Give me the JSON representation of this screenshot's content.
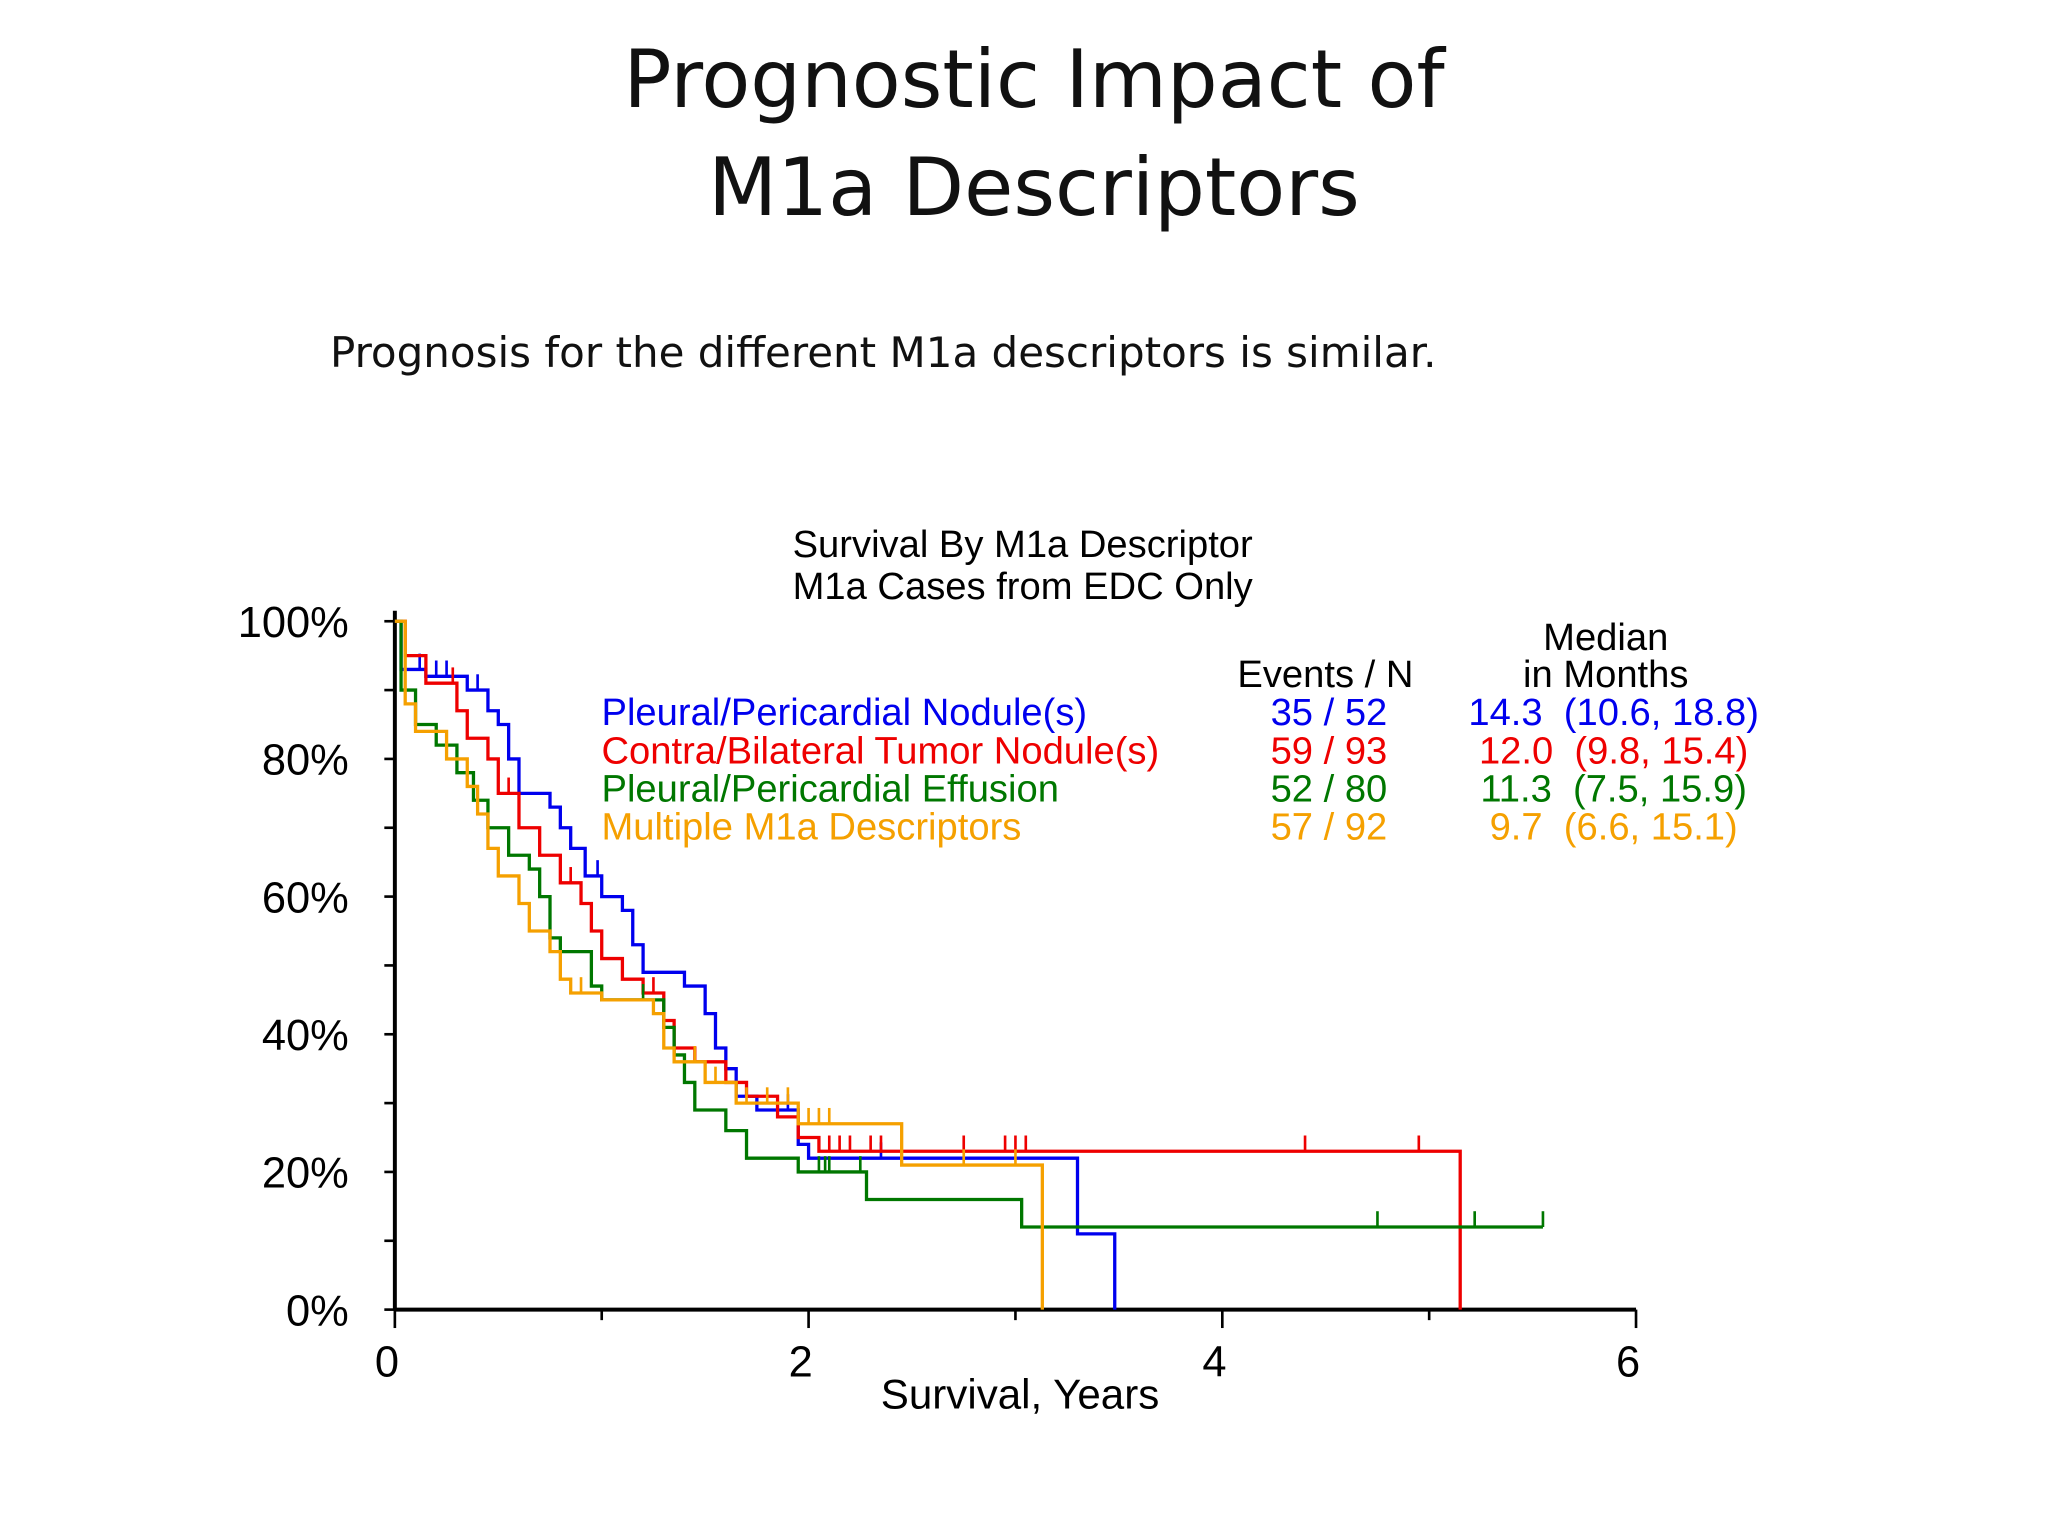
{
  "slide": {
    "title_line1": "Prognostic Impact of",
    "title_line2": "M1a Descriptors",
    "subtitle": "Prognosis for the different M1a descriptors is similar."
  },
  "chart_data": {
    "type": "line",
    "title": "Survival By M1a Descriptor",
    "subtitle": "M1a Cases from EDC Only",
    "xlabel": "Survival, Years",
    "ylabel": "",
    "xlim": [
      0,
      6
    ],
    "ylim": [
      0,
      100
    ],
    "xticks": [
      "0",
      "2",
      "4",
      "6"
    ],
    "yticks": [
      "0%",
      "20%",
      "40%",
      "60%",
      "80%",
      "100%"
    ],
    "grid": false,
    "legend_placement": "top-right",
    "legend_headers": {
      "events": "Events / N",
      "median_line1": "Median",
      "median_line2": "in Months"
    },
    "series": [
      {
        "name": "Pleural/Pericardial Nodule(s)",
        "color": "#0000ee",
        "events_n": "35 / 52",
        "median": "14.3  (10.6, 18.8)",
        "steps": [
          [
            0,
            100
          ],
          [
            0.03,
            93
          ],
          [
            0.15,
            92
          ],
          [
            0.35,
            90
          ],
          [
            0.45,
            87
          ],
          [
            0.5,
            85
          ],
          [
            0.55,
            80
          ],
          [
            0.6,
            75
          ],
          [
            0.75,
            73
          ],
          [
            0.8,
            70
          ],
          [
            0.85,
            67
          ],
          [
            0.92,
            63
          ],
          [
            1.0,
            60
          ],
          [
            1.1,
            58
          ],
          [
            1.15,
            53
          ],
          [
            1.2,
            49
          ],
          [
            1.4,
            47
          ],
          [
            1.5,
            43
          ],
          [
            1.55,
            38
          ],
          [
            1.6,
            35
          ],
          [
            1.65,
            31
          ],
          [
            1.75,
            29
          ],
          [
            1.95,
            24
          ],
          [
            2.0,
            22
          ],
          [
            3.3,
            11
          ],
          [
            3.48,
            0
          ]
        ],
        "end": 3.48,
        "censored": [
          0.12,
          0.2,
          0.25,
          0.4,
          0.98,
          1.5,
          1.9,
          2.35,
          2.45
        ]
      },
      {
        "name": "Contra/Bilateral Tumor Nodule(s)",
        "color": "#ee0000",
        "events_n": "59 / 93",
        "median": "12.0  (9.8, 15.4)",
        "steps": [
          [
            0,
            100
          ],
          [
            0.05,
            95
          ],
          [
            0.15,
            91
          ],
          [
            0.3,
            87
          ],
          [
            0.35,
            83
          ],
          [
            0.45,
            80
          ],
          [
            0.5,
            75
          ],
          [
            0.6,
            70
          ],
          [
            0.7,
            66
          ],
          [
            0.8,
            62
          ],
          [
            0.9,
            59
          ],
          [
            0.95,
            55
          ],
          [
            1.0,
            51
          ],
          [
            1.1,
            48
          ],
          [
            1.2,
            46
          ],
          [
            1.3,
            42
          ],
          [
            1.35,
            38
          ],
          [
            1.45,
            36
          ],
          [
            1.6,
            33
          ],
          [
            1.7,
            31
          ],
          [
            1.85,
            28
          ],
          [
            1.95,
            25
          ],
          [
            2.05,
            23
          ],
          [
            5.15,
            0
          ]
        ],
        "end": 5.15,
        "censored": [
          0.28,
          0.55,
          0.85,
          1.25,
          1.6,
          2.1,
          2.15,
          2.2,
          2.3,
          2.35,
          2.75,
          2.95,
          3.0,
          3.05,
          4.4,
          4.95
        ]
      },
      {
        "name": "Pleural/Pericardial Effusion",
        "color": "#007700",
        "events_n": "52 / 80",
        "median": "11.3  (7.5, 15.9)",
        "steps": [
          [
            0,
            100
          ],
          [
            0.03,
            90
          ],
          [
            0.1,
            85
          ],
          [
            0.2,
            82
          ],
          [
            0.3,
            78
          ],
          [
            0.38,
            74
          ],
          [
            0.45,
            70
          ],
          [
            0.55,
            66
          ],
          [
            0.65,
            64
          ],
          [
            0.7,
            60
          ],
          [
            0.75,
            54
          ],
          [
            0.8,
            52
          ],
          [
            0.95,
            47
          ],
          [
            1.0,
            45
          ],
          [
            1.3,
            41
          ],
          [
            1.35,
            37
          ],
          [
            1.4,
            33
          ],
          [
            1.45,
            29
          ],
          [
            1.6,
            26
          ],
          [
            1.7,
            22
          ],
          [
            1.95,
            20
          ],
          [
            2.28,
            16
          ],
          [
            3.03,
            12
          ]
        ],
        "end": 5.55,
        "censored": [
          0.55,
          1.2,
          1.35,
          2.05,
          2.08,
          2.1,
          2.25,
          4.75,
          5.22,
          5.55
        ]
      },
      {
        "name": "Multiple M1a Descriptors",
        "color": "#f5a000",
        "events_n": "57 / 92",
        "median": "9.7  (6.6, 15.1)",
        "steps": [
          [
            0,
            100
          ],
          [
            0.05,
            88
          ],
          [
            0.1,
            84
          ],
          [
            0.25,
            80
          ],
          [
            0.35,
            76
          ],
          [
            0.4,
            72
          ],
          [
            0.45,
            67
          ],
          [
            0.5,
            63
          ],
          [
            0.6,
            59
          ],
          [
            0.65,
            55
          ],
          [
            0.75,
            52
          ],
          [
            0.8,
            48
          ],
          [
            0.85,
            46
          ],
          [
            1.0,
            45
          ],
          [
            1.25,
            43
          ],
          [
            1.3,
            38
          ],
          [
            1.35,
            36
          ],
          [
            1.5,
            33
          ],
          [
            1.65,
            30
          ],
          [
            1.95,
            27
          ],
          [
            2.45,
            21
          ],
          [
            3.13,
            0
          ]
        ],
        "end": 3.13,
        "censored": [
          0.35,
          0.9,
          1.45,
          1.55,
          1.7,
          1.8,
          1.9,
          2.0,
          2.05,
          2.1,
          2.75,
          3.0
        ]
      }
    ]
  }
}
